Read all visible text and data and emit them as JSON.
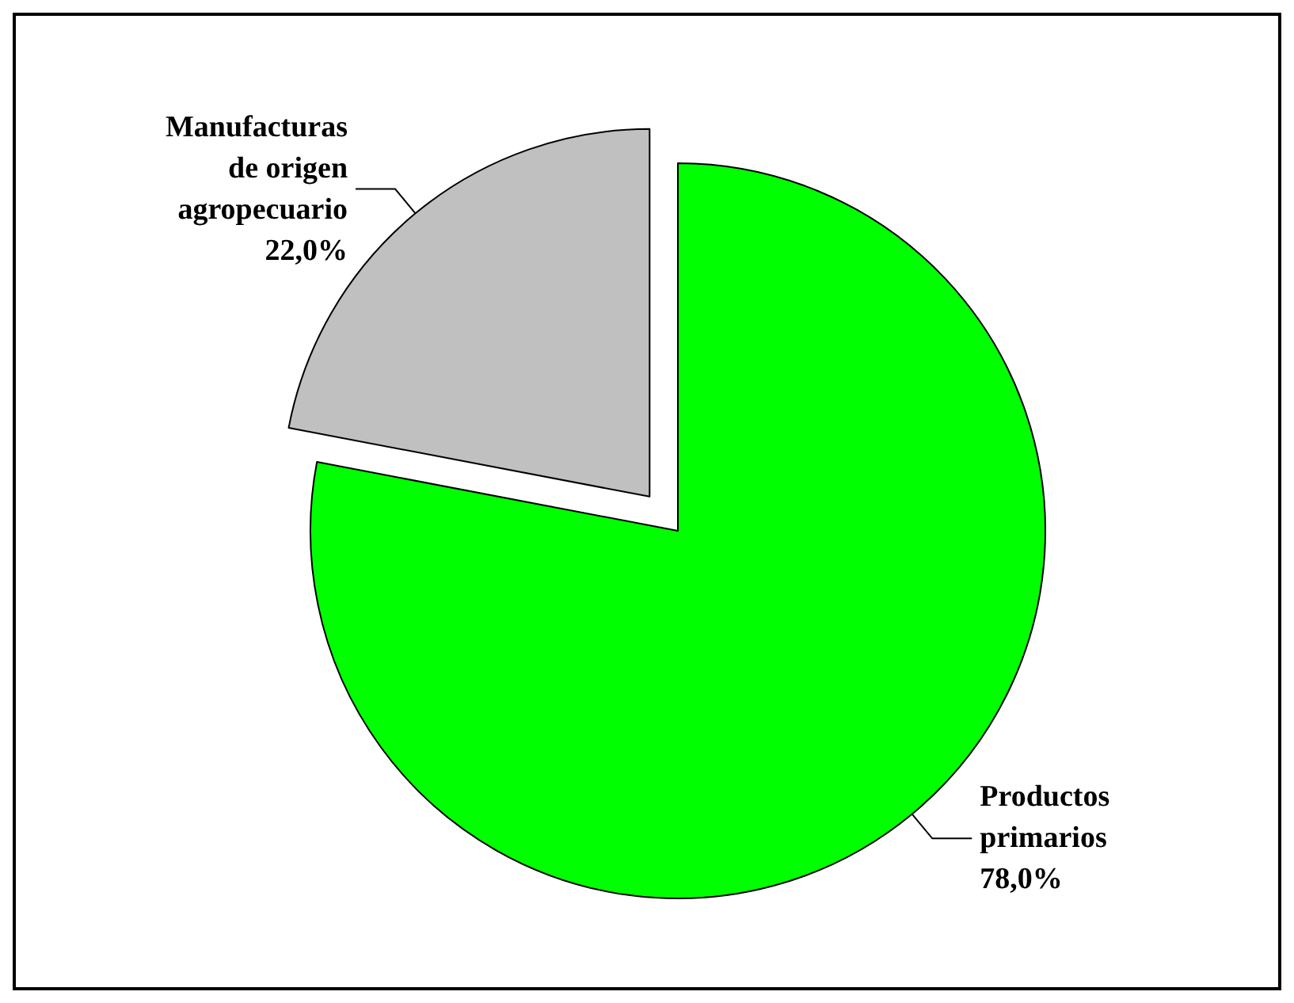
{
  "chart_data": {
    "type": "pie",
    "categories": [
      "Productos primarios",
      "Manufacturas de origen agropecuario"
    ],
    "values": [
      78.0,
      22.0
    ],
    "colors": [
      "#00ff00",
      "#c0c0c0"
    ],
    "value_labels": [
      "78,0%",
      "22,0%"
    ]
  }
}
